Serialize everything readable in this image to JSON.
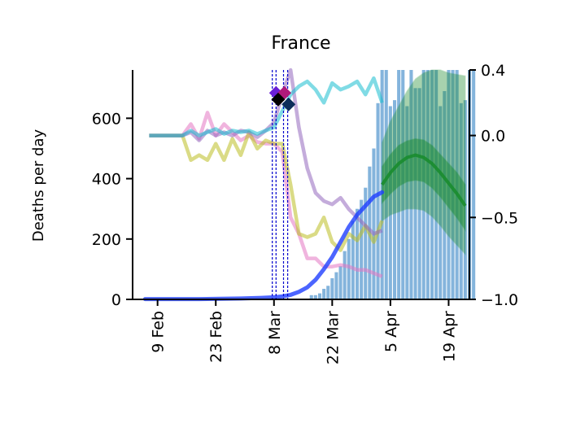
{
  "chart_data": {
    "type": "line",
    "title": "France",
    "ylabel": "Deaths per day",
    "x_ticks": [
      "9 Feb",
      "23 Feb",
      "8 Mar",
      "22 Mar",
      "5 Apr",
      "19 Apr"
    ],
    "y_left": {
      "ticks": [
        0,
        200,
        400,
        600
      ],
      "ylim": [
        0,
        760
      ]
    },
    "y_right": {
      "ticks": [
        "0.4",
        "0.0",
        "−0.5",
        "−1.0"
      ],
      "tick_values": [
        0.4,
        0.0,
        -0.5,
        -1.0
      ],
      "ylim": [
        -1.0,
        0.4
      ]
    },
    "x_range_days": [
      -6,
      75
    ],
    "deaths_bars": {
      "day_start": 37,
      "values": [
        14,
        14,
        20,
        35,
        45,
        70,
        90,
        110,
        160,
        200,
        260,
        300,
        330,
        370,
        440,
        500,
        650,
        760,
        760,
        640,
        660,
        760,
        760,
        640,
        760,
        700,
        700,
        760,
        760,
        760,
        760,
        640,
        690,
        760,
        760,
        760,
        650,
        660,
        760,
        760
      ]
    },
    "fitted_deaths": {
      "color": "#1f3fff",
      "x": [
        -3,
        0,
        5,
        10,
        15,
        20,
        25,
        28,
        30,
        32,
        34,
        36,
        38,
        40,
        42,
        44,
        46,
        48,
        50,
        52,
        54
      ],
      "values": [
        1,
        1,
        1,
        1,
        2,
        3,
        5,
        7,
        10,
        15,
        25,
        40,
        65,
        100,
        140,
        190,
        240,
        280,
        310,
        340,
        355
      ]
    },
    "forecast": {
      "color": "#1a8c2e",
      "x": [
        54,
        56,
        58,
        60,
        62,
        64,
        66,
        68,
        70,
        72,
        74
      ],
      "median": [
        380,
        420,
        450,
        470,
        478,
        470,
        450,
        420,
        385,
        350,
        310
      ],
      "inner_low": [
        320,
        350,
        375,
        390,
        395,
        390,
        370,
        340,
        305,
        270,
        230
      ],
      "inner_high": [
        440,
        480,
        510,
        525,
        532,
        528,
        510,
        480,
        450,
        420,
        380
      ],
      "outer_low": [
        260,
        280,
        290,
        300,
        300,
        295,
        275,
        245,
        210,
        180,
        150
      ],
      "outer_high": [
        520,
        590,
        640,
        690,
        730,
        750,
        760,
        760,
        750,
        745,
        740
      ]
    },
    "intervention_dates_days": [
      27.6,
      28.5,
      30.3,
      31.3
    ],
    "intervention_color": "#0000cc",
    "series_right": [
      {
        "color": "#e377c2",
        "x": [
          -2,
          2,
          6,
          8,
          10,
          12,
          14,
          16,
          18,
          20,
          22,
          24,
          26,
          28,
          30,
          32,
          34,
          36,
          38,
          40,
          42,
          44,
          46,
          48,
          50,
          52,
          54
        ],
        "values": [
          0.0,
          0.0,
          0.0,
          0.07,
          -0.02,
          0.14,
          0.0,
          0.07,
          0.02,
          -0.03,
          0.0,
          -0.04,
          -0.05,
          -0.05,
          -0.1,
          -0.5,
          -0.6,
          -0.75,
          -0.75,
          -0.8,
          -0.8,
          -0.79,
          -0.8,
          -0.82,
          -0.82,
          -0.84,
          -0.86
        ]
      },
      {
        "color": "#bcbd22",
        "x": [
          -2,
          2,
          6,
          8,
          10,
          12,
          14,
          16,
          18,
          20,
          22,
          24,
          26,
          28,
          30,
          32,
          34,
          36,
          38,
          40,
          42,
          44,
          46,
          48,
          50,
          52,
          54
        ],
        "values": [
          0.0,
          0.0,
          0.0,
          -0.15,
          -0.12,
          -0.15,
          -0.05,
          -0.15,
          -0.02,
          -0.12,
          0.02,
          -0.08,
          -0.03,
          -0.05,
          -0.05,
          -0.3,
          -0.6,
          -0.62,
          -0.6,
          -0.5,
          -0.65,
          -0.7,
          -0.6,
          -0.64,
          -0.55,
          -0.65,
          -0.52
        ]
      },
      {
        "color": "#9467bd",
        "x": [
          -2,
          2,
          6,
          8,
          10,
          12,
          14,
          16,
          18,
          20,
          22,
          24,
          26,
          28,
          30,
          32,
          34,
          36,
          38,
          40,
          42,
          44,
          46,
          48,
          50,
          52,
          54
        ],
        "values": [
          0.0,
          0.0,
          0.0,
          0.02,
          -0.03,
          0.03,
          0.0,
          0.02,
          0.0,
          0.03,
          0.02,
          -0.01,
          0.03,
          0.08,
          0.25,
          0.4,
          0.05,
          -0.2,
          -0.35,
          -0.4,
          -0.42,
          -0.38,
          -0.45,
          -0.5,
          -0.55,
          -0.6,
          -0.58
        ]
      },
      {
        "color": "#17becf",
        "x": [
          -2,
          2,
          6,
          8,
          10,
          12,
          14,
          16,
          18,
          20,
          22,
          24,
          26,
          28,
          30,
          32,
          34,
          36,
          38,
          40,
          42,
          44,
          46,
          48,
          50,
          52,
          54
        ],
        "values": [
          0.0,
          0.0,
          0.0,
          0.03,
          0.0,
          0.02,
          0.04,
          0.01,
          0.03,
          0.02,
          0.03,
          0.01,
          0.03,
          0.05,
          0.15,
          0.25,
          0.3,
          0.33,
          0.28,
          0.2,
          0.32,
          0.28,
          0.3,
          0.33,
          0.25,
          0.35,
          0.2
        ]
      }
    ],
    "markers": [
      {
        "x": 28.5,
        "y": 0.26,
        "color": "#6a1fd6"
      },
      {
        "x": 30.5,
        "y": 0.26,
        "color": "#b0197a"
      },
      {
        "x": 29,
        "y": 0.22,
        "color": "#000000"
      },
      {
        "x": 31.5,
        "y": 0.19,
        "color": "#0c2d5a"
      }
    ]
  }
}
